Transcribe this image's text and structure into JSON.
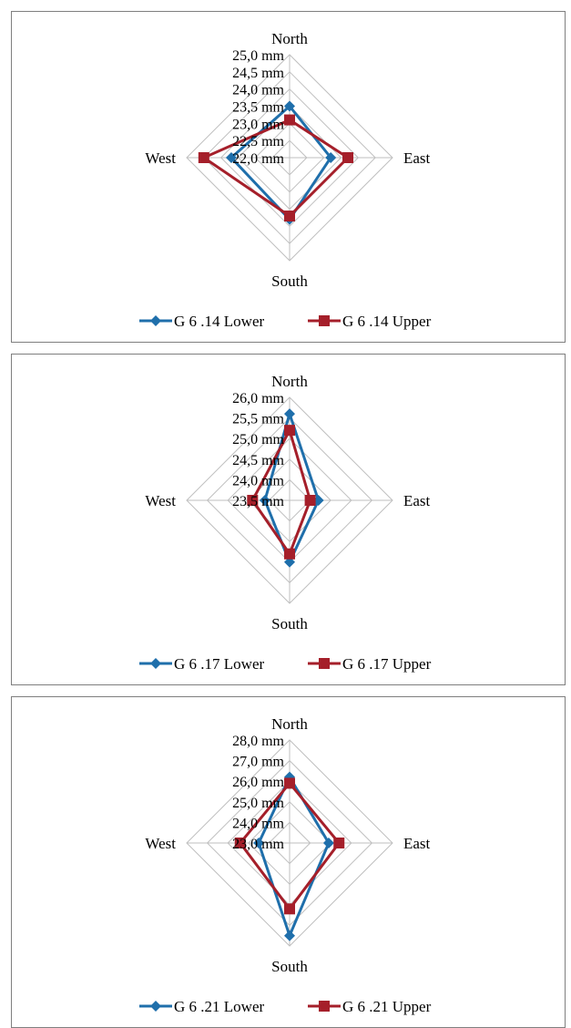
{
  "chart_data": [
    {
      "type": "radar",
      "axes": [
        "North",
        "East",
        "South",
        "West"
      ],
      "tick_labels": [
        "25,0 mm",
        "24,5 mm",
        "24,0 mm",
        "23,5 mm",
        "23,0 mm",
        "22,5 mm",
        "22,0 mm"
      ],
      "rlim": [
        22.0,
        25.0
      ],
      "grid": true,
      "legend": "bottom",
      "series": [
        {
          "name": "G 6 .14 Lower",
          "color": "#1f6fab",
          "marker": "diamond",
          "values": [
            23.5,
            23.2,
            23.8,
            23.7
          ]
        },
        {
          "name": "G 6 .14 Upper",
          "color": "#a51f2a",
          "marker": "square",
          "values": [
            23.1,
            23.7,
            23.7,
            24.5
          ]
        }
      ]
    },
    {
      "type": "radar",
      "axes": [
        "North",
        "East",
        "South",
        "West"
      ],
      "tick_labels": [
        "26,0 mm",
        "25,5 mm",
        "25,0 mm",
        "24,5 mm",
        "24,0 mm",
        "23,5 mm"
      ],
      "rlim": [
        23.5,
        26.0
      ],
      "grid": true,
      "legend": "bottom",
      "series": [
        {
          "name": "G 6 .17 Lower",
          "color": "#1f6fab",
          "marker": "diamond",
          "values": [
            25.6,
            24.2,
            25.0,
            24.1
          ]
        },
        {
          "name": "G 6 .17 Upper",
          "color": "#a51f2a",
          "marker": "square",
          "values": [
            25.2,
            24.0,
            24.8,
            24.4
          ]
        }
      ]
    },
    {
      "type": "radar",
      "axes": [
        "North",
        "East",
        "South",
        "West"
      ],
      "tick_labels": [
        "28,0 mm",
        "27,0 mm",
        "26,0 mm",
        "25,0 mm",
        "24,0 mm",
        "23,0 mm"
      ],
      "rlim": [
        23.0,
        28.0
      ],
      "grid": true,
      "legend": "bottom",
      "series": [
        {
          "name": "G 6 .21 Lower",
          "color": "#1f6fab",
          "marker": "diamond",
          "values": [
            26.2,
            24.9,
            27.5,
            24.5
          ]
        },
        {
          "name": "G 6 .21 Upper",
          "color": "#a51f2a",
          "marker": "square",
          "values": [
            25.9,
            25.4,
            26.2,
            25.4
          ]
        }
      ]
    }
  ]
}
